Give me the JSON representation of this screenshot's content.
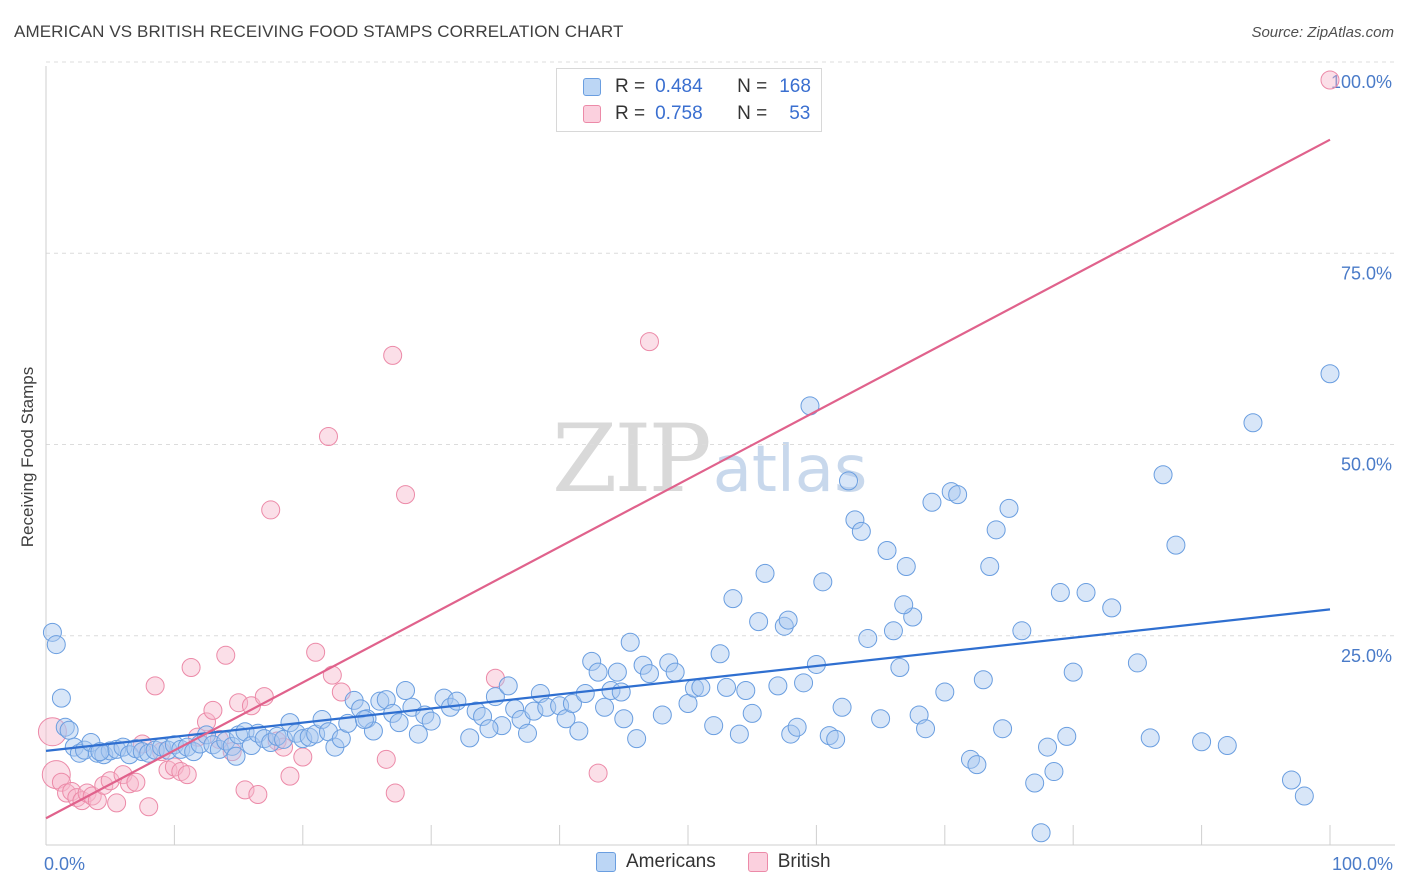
{
  "header": {
    "title": "AMERICAN VS BRITISH RECEIVING FOOD STAMPS CORRELATION CHART",
    "source": "Source: ZipAtlas.com"
  },
  "watermark": {
    "zip": "ZIP",
    "atlas": "atlas"
  },
  "legend_top": {
    "rows": [
      {
        "r_label": "R =",
        "r_value": "0.484",
        "n_label": "N =",
        "n_value": "168",
        "color": "#a8c8f0"
      },
      {
        "r_label": "R =",
        "r_value": "0.758",
        "n_label": "N =",
        "n_value": "53",
        "color": "#f6b8cc"
      }
    ]
  },
  "legend_bottom": {
    "items": [
      {
        "label": "Americans",
        "color": "#a8c8f0"
      },
      {
        "label": "British",
        "color": "#f6b8cc"
      }
    ]
  },
  "chart_data": {
    "type": "scatter",
    "ylabel": "Receiving Food Stamps",
    "xlim": [
      0,
      100
    ],
    "ylim": [
      0,
      100
    ],
    "x_tick_labels": [
      "0.0%",
      "100.0%"
    ],
    "y_ticks": [
      25,
      50,
      75,
      100
    ],
    "y_tick_labels": [
      "25.0%",
      "50.0%",
      "75.0%",
      "100.0%"
    ],
    "grid": true,
    "colors": {
      "Americans": "#6a9ee0",
      "British": "#ec8aa8",
      "Americans_line": "#2f6fd0",
      "British_line": "#e0628c"
    },
    "series": [
      {
        "name": "Americans",
        "trendline": {
          "x": [
            0,
            100
          ],
          "y": [
            12.3,
            30.8
          ]
        },
        "points": [
          [
            0.5,
            27.8
          ],
          [
            0.8,
            26.2
          ],
          [
            1.2,
            19.2
          ],
          [
            1.5,
            15.4
          ],
          [
            1.8,
            15.0
          ],
          [
            2.2,
            12.8
          ],
          [
            2.6,
            12.0
          ],
          [
            3,
            12.4
          ],
          [
            3.5,
            13.4
          ],
          [
            4,
            12.0
          ],
          [
            4.5,
            11.8
          ],
          [
            5,
            12.3
          ],
          [
            5.5,
            12.5
          ],
          [
            6,
            12.8
          ],
          [
            6.5,
            11.8
          ],
          [
            7,
            12.6
          ],
          [
            7.5,
            12.2
          ],
          [
            8,
            12.0
          ],
          [
            8.5,
            12.4
          ],
          [
            9,
            12.8
          ],
          [
            9.5,
            12.4
          ],
          [
            10,
            13.1
          ],
          [
            10.5,
            12.5
          ],
          [
            11,
            12.8
          ],
          [
            11.5,
            12.2
          ],
          [
            12,
            13.2
          ],
          [
            12.5,
            14.4
          ],
          [
            13,
            13.1
          ],
          [
            13.5,
            12.5
          ],
          [
            14,
            13.6
          ],
          [
            14.5,
            12.9
          ],
          [
            15,
            14.4
          ],
          [
            15.5,
            14.8
          ],
          [
            16,
            13.0
          ],
          [
            16.5,
            14.6
          ],
          [
            17,
            13.9
          ],
          [
            17.5,
            13.4
          ],
          [
            18,
            14.2
          ],
          [
            18.5,
            13.8
          ],
          [
            19,
            16.0
          ],
          [
            19.5,
            14.6
          ],
          [
            20,
            13.9
          ],
          [
            20.5,
            14.1
          ],
          [
            21,
            14.5
          ],
          [
            21.5,
            16.4
          ],
          [
            22,
            14.8
          ],
          [
            22.5,
            12.8
          ],
          [
            23,
            13.9
          ],
          [
            23.5,
            15.9
          ],
          [
            24,
            18.9
          ],
          [
            24.5,
            17.8
          ],
          [
            25,
            16.5
          ],
          [
            26,
            18.8
          ],
          [
            26.5,
            19.0
          ],
          [
            27,
            17.2
          ],
          [
            27.5,
            16.0
          ],
          [
            28,
            20.2
          ],
          [
            28.5,
            18.0
          ],
          [
            29,
            14.5
          ],
          [
            29.5,
            17.0
          ],
          [
            30,
            16.2
          ],
          [
            31,
            19.2
          ],
          [
            31.5,
            18.0
          ],
          [
            32,
            18.8
          ],
          [
            33,
            14.0
          ],
          [
            33.5,
            17.5
          ],
          [
            34,
            16.8
          ],
          [
            35,
            19.4
          ],
          [
            35.5,
            15.6
          ],
          [
            36,
            20.8
          ],
          [
            36.5,
            17.8
          ],
          [
            37,
            16.4
          ],
          [
            37.5,
            14.6
          ],
          [
            38,
            17.5
          ],
          [
            38.5,
            19.8
          ],
          [
            39,
            18.0
          ],
          [
            40,
            18.2
          ],
          [
            40.5,
            16.5
          ],
          [
            41,
            18.5
          ],
          [
            41.5,
            14.9
          ],
          [
            42,
            19.8
          ],
          [
            42.5,
            24.0
          ],
          [
            43,
            22.6
          ],
          [
            43.5,
            18.0
          ],
          [
            44,
            20.2
          ],
          [
            44.5,
            22.6
          ],
          [
            45,
            16.5
          ],
          [
            45.5,
            26.5
          ],
          [
            46,
            13.9
          ],
          [
            46.5,
            23.5
          ],
          [
            47,
            22.4
          ],
          [
            48,
            17.0
          ],
          [
            48.5,
            23.8
          ],
          [
            49,
            22.6
          ],
          [
            50,
            18.5
          ],
          [
            50.5,
            20.5
          ],
          [
            51,
            20.6
          ],
          [
            52,
            15.6
          ],
          [
            52.5,
            25.0
          ],
          [
            53,
            20.6
          ],
          [
            54,
            14.5
          ],
          [
            54.5,
            20.2
          ],
          [
            55,
            17.2
          ],
          [
            55.5,
            29.2
          ],
          [
            56,
            35.5
          ],
          [
            57,
            20.8
          ],
          [
            57.5,
            28.6
          ],
          [
            58,
            14.5
          ],
          [
            58.5,
            15.4
          ],
          [
            59,
            21.2
          ],
          [
            59.5,
            57.4
          ],
          [
            60,
            23.6
          ],
          [
            61,
            14.3
          ],
          [
            61.5,
            13.8
          ],
          [
            62,
            18.0
          ],
          [
            62.5,
            47.6
          ],
          [
            63,
            42.5
          ],
          [
            63.5,
            41.0
          ],
          [
            64,
            27.0
          ],
          [
            65,
            16.5
          ],
          [
            65.5,
            38.5
          ],
          [
            66,
            28.0
          ],
          [
            66.5,
            23.2
          ],
          [
            67,
            36.4
          ],
          [
            67.5,
            29.8
          ],
          [
            68,
            17.0
          ],
          [
            68.5,
            15.2
          ],
          [
            69,
            44.8
          ],
          [
            70,
            20.0
          ],
          [
            70.5,
            46.2
          ],
          [
            71,
            45.8
          ],
          [
            72,
            11.2
          ],
          [
            72.5,
            10.5
          ],
          [
            73,
            21.6
          ],
          [
            73.5,
            36.4
          ],
          [
            74,
            41.2
          ],
          [
            74.5,
            15.2
          ],
          [
            75,
            44.0
          ],
          [
            76,
            28.0
          ],
          [
            77,
            8.1
          ],
          [
            77.5,
            1.6
          ],
          [
            78,
            12.8
          ],
          [
            78.5,
            9.6
          ],
          [
            79,
            33.0
          ],
          [
            79.5,
            14.2
          ],
          [
            80,
            22.6
          ],
          [
            81,
            33.0
          ],
          [
            83,
            31.0
          ],
          [
            85,
            23.8
          ],
          [
            86,
            14.0
          ],
          [
            87,
            48.4
          ],
          [
            88,
            39.2
          ],
          [
            90,
            13.5
          ],
          [
            92,
            13.0
          ],
          [
            94,
            55.2
          ],
          [
            97,
            8.5
          ],
          [
            98,
            6.4
          ],
          [
            100,
            61.6
          ],
          [
            14.8,
            11.6
          ],
          [
            25.5,
            14.9
          ],
          [
            34.5,
            15.2
          ],
          [
            44.8,
            20.0
          ],
          [
            53.5,
            32.2
          ],
          [
            57.8,
            29.4
          ],
          [
            60.5,
            34.4
          ],
          [
            66.8,
            31.4
          ],
          [
            24.8,
            16.4
          ],
          [
            4.2,
            12.2
          ]
        ]
      },
      {
        "name": "British",
        "trendline": {
          "x": [
            0,
            100
          ],
          "y": [
            3.5,
            92.2
          ]
        },
        "points": [
          [
            0.5,
            14.8
          ],
          [
            0.8,
            9.2
          ],
          [
            1.2,
            8.2
          ],
          [
            1.6,
            6.8
          ],
          [
            2,
            7.0
          ],
          [
            2.4,
            6.2
          ],
          [
            2.8,
            5.8
          ],
          [
            3.2,
            6.8
          ],
          [
            3.6,
            6.4
          ],
          [
            4,
            5.8
          ],
          [
            4.5,
            7.8
          ],
          [
            5,
            8.4
          ],
          [
            5.5,
            5.5
          ],
          [
            6,
            9.2
          ],
          [
            6.5,
            8.0
          ],
          [
            7,
            8.2
          ],
          [
            7.5,
            13.2
          ],
          [
            8,
            5.0
          ],
          [
            8.5,
            20.8
          ],
          [
            9,
            12.2
          ],
          [
            9.5,
            9.8
          ],
          [
            10,
            10.2
          ],
          [
            10.5,
            9.6
          ],
          [
            11,
            9.2
          ],
          [
            11.3,
            23.2
          ],
          [
            11.8,
            14.1
          ],
          [
            12.5,
            16.1
          ],
          [
            13,
            17.6
          ],
          [
            13.5,
            13.8
          ],
          [
            14,
            24.8
          ],
          [
            14.5,
            12.2
          ],
          [
            15,
            18.6
          ],
          [
            15.5,
            7.2
          ],
          [
            16,
            18.2
          ],
          [
            16.5,
            6.6
          ],
          [
            17,
            19.4
          ],
          [
            17.5,
            43.8
          ],
          [
            18,
            13.6
          ],
          [
            18.5,
            12.8
          ],
          [
            19,
            9.0
          ],
          [
            20,
            11.5
          ],
          [
            21,
            25.2
          ],
          [
            22,
            53.4
          ],
          [
            22.3,
            22.2
          ],
          [
            23,
            20.0
          ],
          [
            26.5,
            11.2
          ],
          [
            27,
            64.0
          ],
          [
            27.2,
            6.8
          ],
          [
            28,
            45.8
          ],
          [
            35,
            21.8
          ],
          [
            43,
            9.4
          ],
          [
            47,
            65.8
          ],
          [
            100,
            100.0
          ]
        ]
      }
    ]
  }
}
